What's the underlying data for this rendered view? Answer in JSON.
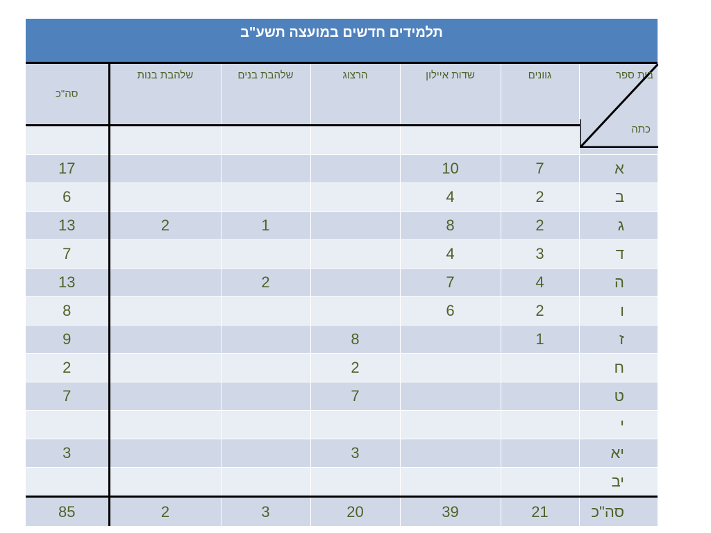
{
  "title": "תלמידים חדשים במועצה תשע\"ב",
  "header": {
    "total": "סה\"כ",
    "schools": [
      "שלהבת בנות",
      "שלהבת בנים",
      "הרצוג",
      "שדות איילון",
      "גוונים"
    ],
    "corner_school": "בית ספר",
    "corner_grade": "כתה"
  },
  "rows": [
    {
      "grade": "א",
      "total": "17",
      "s1": "",
      "s2": "",
      "s3": "",
      "s4": "10",
      "s5": "7"
    },
    {
      "grade": "ב",
      "total": "6",
      "s1": "",
      "s2": "",
      "s3": "",
      "s4": "4",
      "s5": "2"
    },
    {
      "grade": "ג",
      "total": "13",
      "s1": "2",
      "s2": "1",
      "s3": "",
      "s4": "8",
      "s5": "2"
    },
    {
      "grade": "ד",
      "total": "7",
      "s1": "",
      "s2": "",
      "s3": "",
      "s4": "4",
      "s5": "3"
    },
    {
      "grade": "ה",
      "total": "13",
      "s1": "",
      "s2": "2",
      "s3": "",
      "s4": "7",
      "s5": "4"
    },
    {
      "grade": "ו",
      "total": "8",
      "s1": "",
      "s2": "",
      "s3": "",
      "s4": "6",
      "s5": "2"
    },
    {
      "grade": "ז",
      "total": "9",
      "s1": "",
      "s2": "",
      "s3": "8",
      "s4": "",
      "s5": "1"
    },
    {
      "grade": "ח",
      "total": "2",
      "s1": "",
      "s2": "",
      "s3": "2",
      "s4": "",
      "s5": ""
    },
    {
      "grade": "ט",
      "total": "7",
      "s1": "",
      "s2": "",
      "s3": "7",
      "s4": "",
      "s5": ""
    },
    {
      "grade": "י",
      "total": "",
      "s1": "",
      "s2": "",
      "s3": "",
      "s4": "",
      "s5": ""
    },
    {
      "grade": "יא",
      "total": "3",
      "s1": "",
      "s2": "",
      "s3": "3",
      "s4": "",
      "s5": ""
    },
    {
      "grade": "יב",
      "total": "",
      "s1": "",
      "s2": "",
      "s3": "",
      "s4": "",
      "s5": ""
    }
  ],
  "summary": {
    "label": "סה\"כ",
    "total": "85",
    "s1": "2",
    "s2": "3",
    "s3": "20",
    "s4": "39",
    "s5": "21"
  }
}
